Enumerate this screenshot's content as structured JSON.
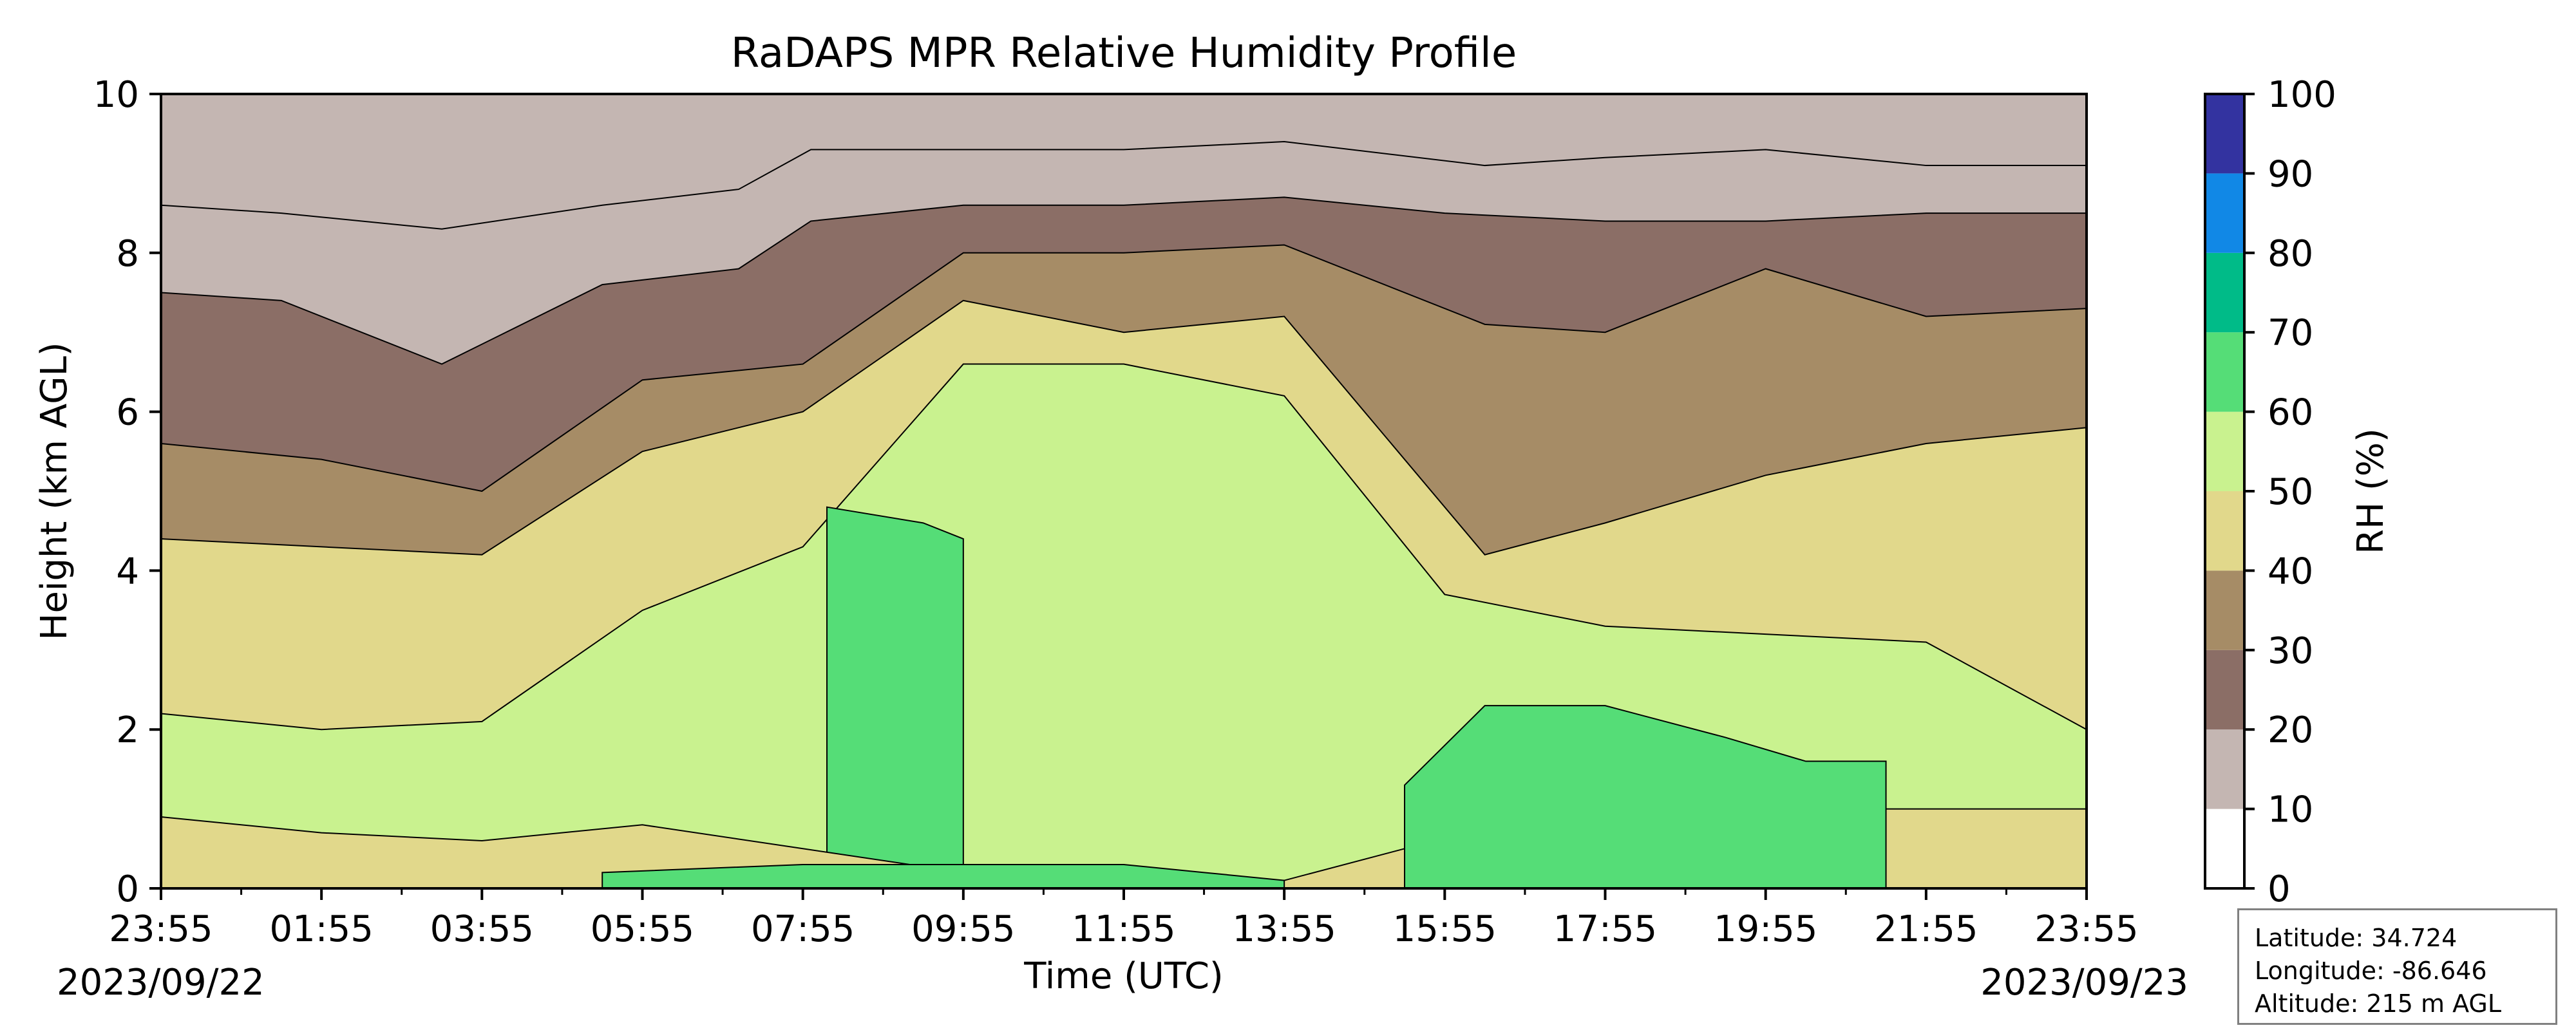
{
  "chart_data": {
    "type": "heatmap",
    "subtype": "filled-contour time-height profile",
    "title": "RaDAPS MPR Relative Humidity Profile",
    "xlabel": "Time (UTC)",
    "ylabel": "Height (km AGL)",
    "x_tick_labels": [
      "23:55",
      "01:55",
      "03:55",
      "05:55",
      "07:55",
      "09:55",
      "11:55",
      "13:55",
      "15:55",
      "17:55",
      "19:55",
      "21:55",
      "23:55"
    ],
    "x_tick_hours": [
      0,
      2,
      4,
      6,
      8,
      10,
      12,
      14,
      16,
      18,
      20,
      22,
      24
    ],
    "x_range_hours": [
      0,
      24
    ],
    "start_date": "2023/09/22",
    "end_date": "2023/09/23",
    "ylim": [
      0,
      10
    ],
    "y_ticks": [
      0,
      2,
      4,
      6,
      8,
      10
    ],
    "grid": false,
    "colorbar": {
      "label": "RH (%)",
      "levels": [
        0,
        10,
        20,
        30,
        40,
        50,
        60,
        70,
        80,
        90,
        100
      ],
      "colors": [
        "#ffffff",
        "#c4b6b2",
        "#8b6e66",
        "#a68c66",
        "#e1d88b",
        "#c9f28f",
        "#55dd77",
        "#00bb88",
        "#1188e6",
        "#3333a0"
      ]
    },
    "layer_boundaries_km": [
      {
        "rh_above_pct": 10,
        "values": [
          [
            0,
            8.6
          ],
          [
            1.5,
            8.5
          ],
          [
            3.5,
            8.3
          ],
          [
            5.5,
            8.6
          ],
          [
            7.2,
            8.8
          ],
          [
            8.1,
            9.3
          ],
          [
            10,
            9.3
          ],
          [
            12,
            9.3
          ],
          [
            14,
            9.4
          ],
          [
            16.5,
            9.1
          ],
          [
            18,
            9.2
          ],
          [
            20,
            9.3
          ],
          [
            22,
            9.1
          ],
          [
            24,
            9.1
          ]
        ]
      },
      {
        "rh_above_pct": 20,
        "values": [
          [
            0,
            7.5
          ],
          [
            1.5,
            7.4
          ],
          [
            3.5,
            6.6
          ],
          [
            5.5,
            7.6
          ],
          [
            7.2,
            7.8
          ],
          [
            8.1,
            8.4
          ],
          [
            10,
            8.6
          ],
          [
            12,
            8.6
          ],
          [
            14,
            8.7
          ],
          [
            16,
            8.5
          ],
          [
            18,
            8.4
          ],
          [
            20,
            8.4
          ],
          [
            22,
            8.5
          ],
          [
            24,
            8.5
          ]
        ]
      },
      {
        "rh_above_pct": 30,
        "values": [
          [
            0,
            5.6
          ],
          [
            2,
            5.4
          ],
          [
            4,
            5.0
          ],
          [
            6,
            6.4
          ],
          [
            8,
            6.6
          ],
          [
            10,
            8.0
          ],
          [
            12,
            8.0
          ],
          [
            14,
            8.1
          ],
          [
            16.5,
            7.1
          ],
          [
            18,
            7.0
          ],
          [
            20,
            7.8
          ],
          [
            22,
            7.2
          ],
          [
            24,
            7.3
          ]
        ]
      },
      {
        "rh_above_pct": 40,
        "values": [
          [
            0,
            4.4
          ],
          [
            2,
            4.3
          ],
          [
            4,
            4.2
          ],
          [
            6,
            5.5
          ],
          [
            8,
            6.0
          ],
          [
            10,
            7.4
          ],
          [
            12,
            7.0
          ],
          [
            14,
            7.2
          ],
          [
            16.5,
            4.2
          ],
          [
            18,
            4.6
          ],
          [
            20,
            5.2
          ],
          [
            22,
            5.6
          ],
          [
            24,
            5.8
          ]
        ]
      },
      {
        "rh_above_pct": 50,
        "values": [
          [
            0,
            2.2
          ],
          [
            2,
            2.0
          ],
          [
            4,
            2.1
          ],
          [
            6,
            3.5
          ],
          [
            8,
            4.3
          ],
          [
            10,
            6.6
          ],
          [
            12,
            6.6
          ],
          [
            14,
            6.2
          ],
          [
            16,
            3.7
          ],
          [
            18,
            3.3
          ],
          [
            20,
            3.2
          ],
          [
            22,
            3.1
          ],
          [
            24,
            2.0
          ]
        ]
      },
      {
        "rh_above_pct": 60,
        "values": [
          [
            8.3,
            4.8
          ],
          [
            9.5,
            4.6
          ],
          [
            10,
            4.4
          ]
        ]
      },
      {
        "rh_above_pct": 40,
        "values": [
          [
            0,
            0.9
          ],
          [
            2,
            0.7
          ],
          [
            4,
            0.6
          ],
          [
            6,
            0.8
          ],
          [
            8,
            0.5
          ],
          [
            10,
            0.2
          ],
          [
            14,
            0.1
          ],
          [
            15.5,
            0.5
          ],
          [
            16.5,
            0.8
          ],
          [
            18,
            1.1
          ],
          [
            20,
            1.0
          ],
          [
            22,
            1.0
          ],
          [
            24,
            1.0
          ]
        ]
      },
      {
        "rh_above_pct": 60,
        "values": [
          [
            5.5,
            0.2
          ],
          [
            8,
            0.3
          ],
          [
            10,
            0.3
          ],
          [
            12,
            0.3
          ],
          [
            13,
            0.2
          ],
          [
            14,
            0.1
          ]
        ]
      },
      {
        "rh_above_pct": 60,
        "values": [
          [
            15.5,
            1.3
          ],
          [
            16.5,
            2.3
          ],
          [
            18,
            2.3
          ],
          [
            19.5,
            1.9
          ],
          [
            20.5,
            1.6
          ],
          [
            21.5,
            1.6
          ]
        ]
      }
    ]
  },
  "info": {
    "latitude": "Latitude: 34.724",
    "longitude": "Longitude: -86.646",
    "altitude": "Altitude: 215 m AGL"
  }
}
